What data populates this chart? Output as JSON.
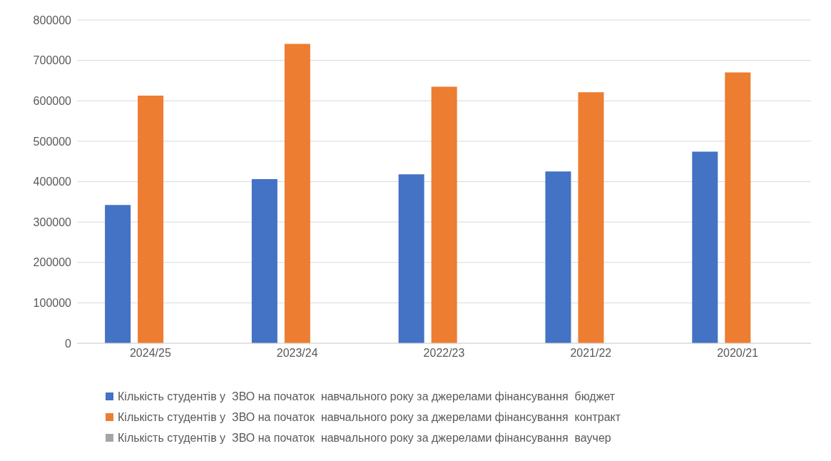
{
  "chart_data": {
    "type": "bar",
    "categories": [
      "2024/25",
      "2023/24",
      "2022/23",
      "2021/22",
      "2020/21"
    ],
    "series": [
      {
        "name": "Кількість студентів у  ЗВО на початок  навчального року за джерелами фінансування  бюджет",
        "color": "#4472c4",
        "values": [
          342000,
          406000,
          418000,
          425000,
          474000
        ]
      },
      {
        "name": "Кількість студентів у  ЗВО на початок  навчального року за джерелами фінансування  контракт",
        "color": "#ed7d31",
        "values": [
          613000,
          741000,
          635000,
          621000,
          670000
        ]
      },
      {
        "name": "Кількість студентів у  ЗВО на початок  навчального року за джерелами фінансування  ваучер",
        "color": "#a5a5a5",
        "values": [
          0,
          0,
          0,
          0,
          0
        ]
      }
    ],
    "ylim": [
      0,
      800000
    ],
    "yticks": [
      0,
      100000,
      200000,
      300000,
      400000,
      500000,
      600000,
      700000,
      800000
    ],
    "grid": "y",
    "legend": "bottom"
  }
}
